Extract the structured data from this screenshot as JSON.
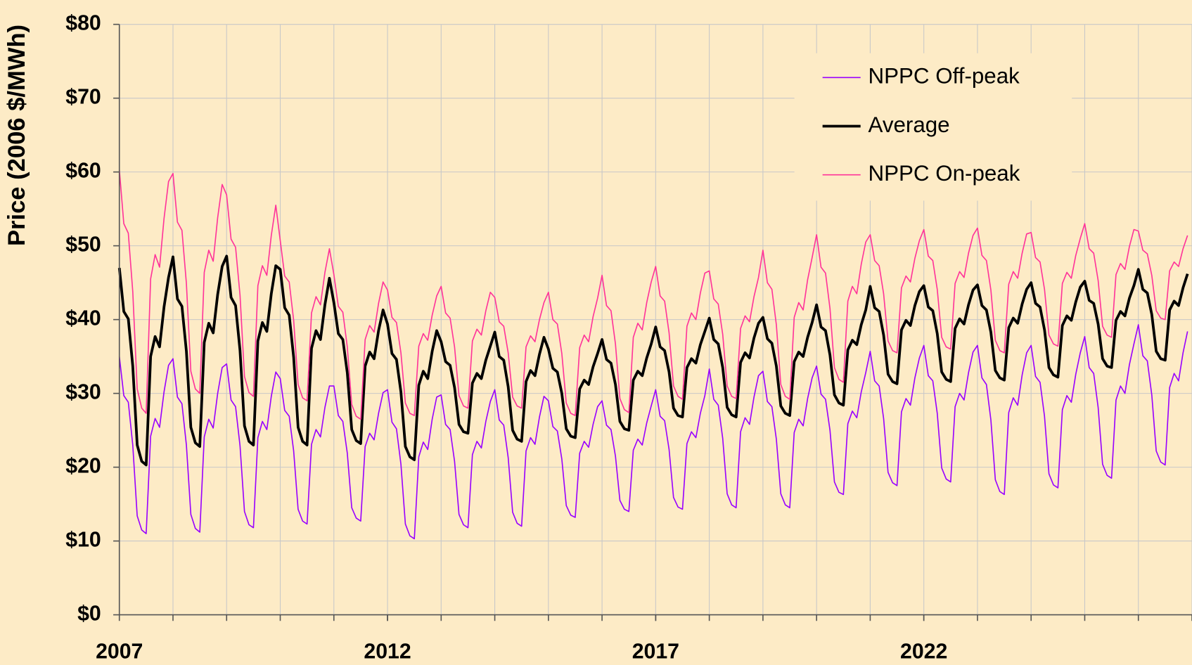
{
  "chart_data": {
    "type": "line",
    "ylabel": "Price (2006 $/MWh)",
    "xlim": [
      2007,
      2027
    ],
    "xticks": [
      2007,
      2012,
      2017,
      2022
    ],
    "xminor_ticks": [
      2008,
      2009,
      2010,
      2011,
      2012,
      2013,
      2014,
      2015,
      2016,
      2017,
      2018,
      2019,
      2020,
      2021,
      2022,
      2023,
      2024,
      2025,
      2026,
      2027
    ],
    "ylim": [
      0,
      80
    ],
    "yticks": [
      {
        "value": 0,
        "label": "$0"
      },
      {
        "value": 10,
        "label": "$10"
      },
      {
        "value": 20,
        "label": "$20"
      },
      {
        "value": 30,
        "label": "$30"
      },
      {
        "value": 40,
        "label": "$40"
      },
      {
        "value": 50,
        "label": "$50"
      },
      {
        "value": 60,
        "label": "$60"
      },
      {
        "value": 70,
        "label": "$70"
      },
      {
        "value": 80,
        "label": "$80"
      }
    ],
    "grid": true,
    "legend": "upper right",
    "x": [
      2007,
      2007.083,
      2007.167,
      2007.25,
      2007.333,
      2007.417,
      2007.5,
      2007.583,
      2007.667,
      2007.75,
      2007.833,
      2007.917,
      2008,
      2008.083,
      2008.167,
      2008.25,
      2008.333,
      2008.417,
      2008.5,
      2008.583,
      2008.667,
      2008.75,
      2008.833,
      2008.917,
      2009,
      2009.083,
      2009.167,
      2009.25,
      2009.333,
      2009.417,
      2009.5,
      2009.583,
      2009.667,
      2009.75,
      2009.833,
      2009.917,
      2010,
      2010.083,
      2010.167,
      2010.25,
      2010.333,
      2010.417,
      2010.5,
      2010.583,
      2010.667,
      2010.75,
      2010.833,
      2010.917,
      2011,
      2011.083,
      2011.167,
      2011.25,
      2011.333,
      2011.417,
      2011.5,
      2011.583,
      2011.667,
      2011.75,
      2011.833,
      2011.917,
      2012,
      2012.083,
      2012.167,
      2012.25,
      2012.333,
      2012.417,
      2012.5,
      2012.583,
      2012.667,
      2012.75,
      2012.833,
      2012.917,
      2013,
      2013.083,
      2013.167,
      2013.25,
      2013.333,
      2013.417,
      2013.5,
      2013.583,
      2013.667,
      2013.75,
      2013.833,
      2013.917,
      2014,
      2014.083,
      2014.167,
      2014.25,
      2014.333,
      2014.417,
      2014.5,
      2014.583,
      2014.667,
      2014.75,
      2014.833,
      2014.917,
      2015,
      2015.083,
      2015.167,
      2015.25,
      2015.333,
      2015.417,
      2015.5,
      2015.583,
      2015.667,
      2015.75,
      2015.833,
      2015.917,
      2016,
      2016.083,
      2016.167,
      2016.25,
      2016.333,
      2016.417,
      2016.5,
      2016.583,
      2016.667,
      2016.75,
      2016.833,
      2016.917,
      2017,
      2017.083,
      2017.167,
      2017.25,
      2017.333,
      2017.417,
      2017.5,
      2017.583,
      2017.667,
      2017.75,
      2017.833,
      2017.917,
      2018,
      2018.083,
      2018.167,
      2018.25,
      2018.333,
      2018.417,
      2018.5,
      2018.583,
      2018.667,
      2018.75,
      2018.833,
      2018.917,
      2019,
      2019.083,
      2019.167,
      2019.25,
      2019.333,
      2019.417,
      2019.5,
      2019.583,
      2019.667,
      2019.75,
      2019.833,
      2019.917,
      2020,
      2020.083,
      2020.167,
      2020.25,
      2020.333,
      2020.417,
      2020.5,
      2020.583,
      2020.667,
      2020.75,
      2020.833,
      2020.917,
      2021,
      2021.083,
      2021.167,
      2021.25,
      2021.333,
      2021.417,
      2021.5,
      2021.583,
      2021.667,
      2021.75,
      2021.833,
      2021.917,
      2022,
      2022.083,
      2022.167,
      2022.25,
      2022.333,
      2022.417,
      2022.5,
      2022.583,
      2022.667,
      2022.75,
      2022.833,
      2022.917,
      2023,
      2023.083,
      2023.167,
      2023.25,
      2023.333,
      2023.417,
      2023.5,
      2023.583,
      2023.667,
      2023.75,
      2023.833,
      2023.917,
      2024,
      2024.083,
      2024.167,
      2024.25,
      2024.333,
      2024.417,
      2024.5,
      2024.583,
      2024.667,
      2024.75,
      2024.833,
      2024.917,
      2025,
      2025.083,
      2025.167,
      2025.25,
      2025.333,
      2025.417,
      2025.5,
      2025.583,
      2025.667,
      2025.75,
      2025.833,
      2025.917,
      2026,
      2026.083,
      2026.167,
      2026.25,
      2026.333,
      2026.417,
      2026.5,
      2026.583,
      2026.667,
      2026.75,
      2026.833,
      2026.917
    ],
    "series": [
      {
        "name": "NPPC Off-peak",
        "color": "#9900ff",
        "width": 1.5,
        "values": [
          35,
          29.7,
          28.8,
          23,
          13.4,
          11.5,
          11,
          24.2,
          26.6,
          25.4,
          30.2,
          33.8,
          34.7,
          29.5,
          28.6,
          23,
          13.6,
          11.7,
          11.2,
          24.1,
          26.5,
          25.3,
          30,
          33.5,
          34,
          29.1,
          28.2,
          22.9,
          14,
          12.2,
          11.8,
          24,
          26.2,
          25.1,
          29.6,
          32.9,
          32,
          27.7,
          26.9,
          22.2,
          14.3,
          12.7,
          12.3,
          23.1,
          25.1,
          24.1,
          28.1,
          31,
          31,
          27,
          26.2,
          21.9,
          14.5,
          13.1,
          12.7,
          22.8,
          24.6,
          23.7,
          27.3,
          30.1,
          30.5,
          26.1,
          25.2,
          20.4,
          12.3,
          10.7,
          10.3,
          21.4,
          23.4,
          22.4,
          26.5,
          29.5,
          29.8,
          25.8,
          25.1,
          20.8,
          13.6,
          12.2,
          11.8,
          21.7,
          23.5,
          22.6,
          26.2,
          28.9,
          30.5,
          26.4,
          25.7,
          21.3,
          13.9,
          12.4,
          12,
          22.2,
          24,
          23.1,
          26.8,
          29.6,
          29,
          25.5,
          24.9,
          21.1,
          14.8,
          13.5,
          13.2,
          21.9,
          23.5,
          22.7,
          25.8,
          28.2,
          29,
          25.7,
          25.1,
          21.5,
          15.5,
          14.3,
          14,
          22.3,
          23.8,
          23,
          26,
          28.3,
          30.5,
          26.9,
          26.3,
          22.4,
          15.9,
          14.6,
          14.3,
          23.2,
          24.8,
          24,
          27.3,
          29.7,
          33.3,
          29.2,
          28.4,
          23.9,
          16.4,
          14.9,
          14.5,
          24.8,
          26.7,
          25.8,
          29.5,
          32.4,
          33,
          28.9,
          28.2,
          23.8,
          16.4,
          14.9,
          14.5,
          24.7,
          26.5,
          25.6,
          29.3,
          32.1,
          33.7,
          29.9,
          29.2,
          25,
          18,
          16.6,
          16.3,
          25.9,
          27.6,
          26.7,
          30.2,
          32.8,
          35.7,
          31.7,
          31,
          26.6,
          19.3,
          17.9,
          17.5,
          27.5,
          29.3,
          28.4,
          32.1,
          34.8,
          36.5,
          32.4,
          31.7,
          27.3,
          19.9,
          18.4,
          18,
          28.2,
          30,
          29.1,
          32.8,
          35.6,
          36.5,
          32.1,
          31.2,
          26.4,
          18.3,
          16.7,
          16.3,
          27.4,
          29.4,
          28.4,
          32.5,
          35.5,
          36.5,
          32.3,
          31.5,
          26.9,
          19.1,
          17.6,
          17.2,
          27.8,
          29.7,
          28.8,
          32.6,
          35.5,
          37.7,
          33.5,
          32.7,
          28.1,
          20.4,
          18.9,
          18.5,
          29.1,
          31,
          30,
          33.9,
          36.7,
          39.3,
          35.1,
          34.4,
          29.8,
          22.2,
          20.7,
          20.3,
          30.8,
          32.7,
          31.7,
          35.5,
          38.4
        ]
      },
      {
        "name": "Average",
        "color": "#000000",
        "width": 3.5,
        "values": [
          47,
          41.1,
          40.1,
          33.7,
          23,
          20.8,
          20.3,
          35,
          37.7,
          36.3,
          41.7,
          45.7,
          48.5,
          42.8,
          41.8,
          35.7,
          25.4,
          23.3,
          22.8,
          36.9,
          39.5,
          38.2,
          43.4,
          47.2,
          48.6,
          43,
          41.9,
          35.8,
          25.6,
          23.5,
          23,
          37.1,
          39.6,
          38.4,
          43.5,
          47.3,
          46.8,
          41.6,
          40.6,
          34.9,
          25.4,
          23.5,
          23,
          36.1,
          38.5,
          37.3,
          42,
          45.6,
          42.3,
          38.1,
          37.3,
          32.8,
          25.1,
          23.6,
          23.2,
          33.7,
          35.6,
          34.7,
          38.5,
          41.3,
          39.4,
          35.4,
          34.6,
          30.2,
          22.8,
          21.4,
          21,
          31.1,
          33,
          32,
          35.7,
          38.5,
          37,
          34.3,
          33.8,
          30.8,
          25.8,
          24.8,
          24.6,
          31.4,
          32.7,
          32,
          34.5,
          36.4,
          38.3,
          35,
          34.5,
          30.9,
          25,
          23.8,
          23.5,
          31.6,
          33.1,
          32.4,
          35.3,
          37.6,
          36,
          33.4,
          32.9,
          30,
          25.2,
          24.2,
          24,
          30.6,
          31.8,
          31.2,
          33.6,
          35.4,
          37.3,
          34.6,
          34.1,
          31.2,
          26.2,
          25.2,
          25,
          31.8,
          33,
          32.4,
          34.8,
          36.7,
          39,
          36.3,
          35.8,
          32.9,
          28,
          27,
          26.8,
          33.5,
          34.7,
          34.1,
          36.6,
          38.4,
          40.2,
          37.3,
          36.7,
          33.5,
          28.1,
          27.1,
          26.8,
          34.2,
          35.5,
          34.8,
          37.5,
          39.5,
          40.3,
          37.4,
          36.8,
          33.7,
          28.3,
          27.3,
          27,
          34.3,
          35.6,
          35,
          37.6,
          39.6,
          42,
          39,
          38.5,
          35.2,
          29.8,
          28.7,
          28.4,
          35.9,
          37.2,
          36.6,
          39.3,
          41.3,
          44.5,
          41.6,
          41.1,
          37.9,
          32.6,
          31.6,
          31.3,
          38.6,
          39.9,
          39.2,
          41.9,
          43.8,
          44.6,
          41.7,
          41.2,
          38.1,
          32.9,
          31.9,
          31.6,
          38.8,
          40.1,
          39.4,
          42,
          44,
          44.7,
          41.9,
          41.3,
          38.3,
          33.1,
          32.1,
          31.8,
          38.9,
          40.2,
          39.5,
          42.1,
          44.1,
          45,
          42.2,
          41.7,
          38.6,
          33.5,
          32.5,
          32.2,
          39.2,
          40.5,
          39.9,
          42.4,
          44.4,
          45.2,
          42.6,
          42.2,
          39.4,
          34.7,
          33.7,
          33.5,
          39.9,
          41.1,
          40.5,
          42.9,
          44.6,
          46.8,
          44.1,
          43.6,
          40.7,
          35.7,
          34.7,
          34.5,
          41.3,
          42.5,
          41.9,
          44.3,
          46.2
        ]
      },
      {
        "name": "NPPC On-peak",
        "color": "#ff3399",
        "width": 1.5,
        "values": [
          60.3,
          53,
          51.7,
          43.8,
          30.6,
          28,
          27.3,
          45.5,
          48.8,
          47.1,
          53.7,
          58.7,
          59.8,
          53.2,
          52.1,
          44.9,
          33,
          30.6,
          30,
          46.4,
          49.4,
          47.9,
          53.8,
          58.3,
          56.9,
          50.9,
          49.8,
          43.3,
          32.3,
          30.1,
          29.6,
          44.6,
          47.3,
          46,
          51.4,
          55.5,
          50.7,
          45.9,
          45.1,
          39.9,
          31.2,
          29.4,
          29,
          40.9,
          43.1,
          42,
          46.4,
          49.6,
          46.1,
          41.8,
          41,
          36.3,
          28.5,
          26.9,
          26.5,
          37.3,
          39.2,
          38.3,
          42.2,
          45.1,
          44,
          40.3,
          39.6,
          35.5,
          28.7,
          27.3,
          27,
          36.4,
          38.1,
          37.2,
          40.6,
          43.2,
          44.5,
          40.9,
          40.2,
          36.3,
          29.7,
          28.3,
          28,
          37.1,
          38.7,
          37.9,
          41.2,
          43.7,
          43,
          39.7,
          39.1,
          35.5,
          29.5,
          28.3,
          28,
          36.3,
          37.8,
          37,
          40,
          42.3,
          43.7,
          40,
          39.4,
          35.4,
          28.7,
          27.3,
          27,
          36.2,
          37.9,
          37,
          40.4,
          42.9,
          46,
          41.9,
          41.2,
          36.7,
          29.3,
          27.8,
          27.4,
          37.6,
          39.5,
          38.6,
          42.3,
          45.1,
          47.2,
          43.2,
          42.5,
          38.2,
          31,
          29.6,
          29.2,
          39.1,
          40.9,
          40,
          43.6,
          46.3,
          46.6,
          42.8,
          42.1,
          38,
          31,
          29.6,
          29.3,
          38.8,
          40.5,
          39.7,
          43.1,
          45.7,
          49.4,
          45,
          44.1,
          39.3,
          31.2,
          29.6,
          29.2,
          40.3,
          42.3,
          41.3,
          45.4,
          48.4,
          51.5,
          47.1,
          46.3,
          41.5,
          33.5,
          31.9,
          31.5,
          42.5,
          44.5,
          43.5,
          47.5,
          50.5,
          51.5,
          48,
          47.3,
          43.5,
          37.1,
          35.8,
          35.5,
          44.3,
          45.9,
          45.1,
          48.3,
          50.7,
          52.2,
          48.6,
          48,
          44.1,
          37.6,
          36.3,
          36,
          44.9,
          46.5,
          45.7,
          49,
          51.4,
          52.4,
          48.7,
          48,
          44,
          37.2,
          35.8,
          35.5,
          44.8,
          46.5,
          45.6,
          49,
          51.6,
          51.8,
          48.4,
          47.8,
          44.1,
          37.9,
          36.7,
          36.4,
          44.9,
          46.4,
          45.6,
          48.7,
          51,
          53,
          49.6,
          49,
          45.3,
          39.1,
          37.9,
          37.6,
          46.1,
          47.6,
          46.8,
          49.9,
          52.2,
          52,
          49.4,
          48.9,
          46,
          41.2,
          40.2,
          40,
          46.6,
          47.8,
          47.2,
          49.6,
          51.4
        ]
      }
    ]
  }
}
